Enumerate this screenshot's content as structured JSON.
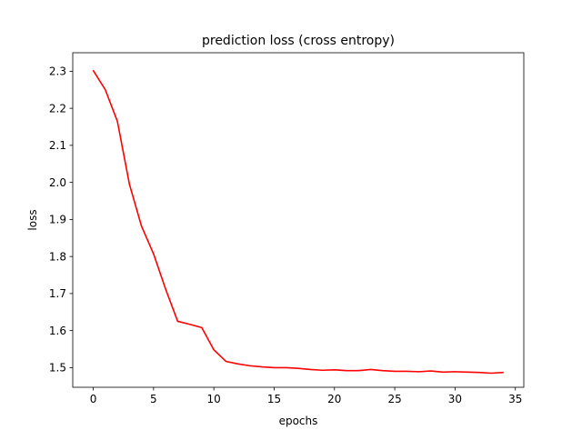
{
  "chart_data": {
    "type": "line",
    "title": "prediction loss (cross entropy)",
    "xlabel": "epochs",
    "ylabel": "loss",
    "xlim": [
      -1.7,
      35.7
    ],
    "ylim": [
      1.447,
      2.35
    ],
    "xticks": [
      0,
      5,
      10,
      15,
      20,
      25,
      30,
      35
    ],
    "xtick_labels": [
      "0",
      "5",
      "10",
      "15",
      "20",
      "25",
      "30",
      "35"
    ],
    "yticks": [
      1.5,
      1.6,
      1.7,
      1.8,
      1.9,
      2.0,
      2.1,
      2.2,
      2.3
    ],
    "ytick_labels": [
      "1.5",
      "1.6",
      "1.7",
      "1.8",
      "1.9",
      "2.0",
      "2.1",
      "2.2",
      "2.3"
    ],
    "grid": false,
    "series": [
      {
        "color": "#ff0000",
        "x": [
          0,
          1,
          2,
          3,
          4,
          5,
          6,
          7,
          8,
          9,
          10,
          11,
          12,
          13,
          14,
          15,
          16,
          17,
          18,
          19,
          20,
          21,
          22,
          23,
          24,
          25,
          26,
          27,
          28,
          29,
          30,
          31,
          32,
          33,
          34
        ],
        "y": [
          2.302,
          2.25,
          2.165,
          1.995,
          1.882,
          1.807,
          1.712,
          1.625,
          1.617,
          1.608,
          1.548,
          1.517,
          1.51,
          1.505,
          1.502,
          1.5,
          1.5,
          1.498,
          1.495,
          1.493,
          1.494,
          1.492,
          1.492,
          1.495,
          1.492,
          1.49,
          1.49,
          1.489,
          1.491,
          1.488,
          1.489,
          1.488,
          1.487,
          1.485,
          1.487
        ]
      }
    ]
  }
}
